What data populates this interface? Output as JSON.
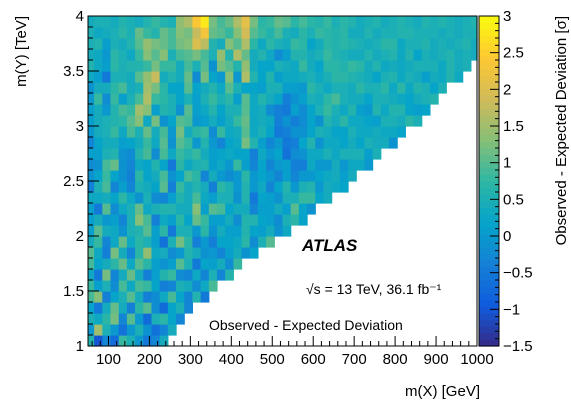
{
  "chart_data": {
    "type": "heatmap",
    "title": "",
    "xlabel": "m(X) [GeV]",
    "ylabel": "m(Y) [TeV]",
    "zlabel": "Observed - Expected Deviation [σ]",
    "xlim": [
      50,
      1000
    ],
    "ylim": [
      1,
      4
    ],
    "zlim": [
      -1.5,
      3
    ],
    "x_ticks": [
      "100",
      "200",
      "300",
      "400",
      "500",
      "600",
      "700",
      "800",
      "900",
      "1000"
    ],
    "y_ticks": [
      "1",
      "1.5",
      "2",
      "2.5",
      "3",
      "3.5",
      "4"
    ],
    "z_ticks": [
      "−1.5",
      "−1",
      "−0.5",
      "0",
      "0.5",
      "1",
      "1.5",
      "2",
      "2.5",
      "3"
    ],
    "grid": false,
    "x_centers": [
      55,
      75,
      95,
      115,
      135,
      155,
      175,
      195,
      215,
      235,
      255,
      275,
      295,
      315,
      335,
      355,
      375,
      395,
      415,
      435,
      455,
      475,
      495,
      515,
      535,
      555,
      575,
      595,
      615,
      635,
      655,
      675,
      695,
      715,
      735,
      755,
      775,
      795,
      815,
      835,
      855,
      875,
      895,
      915,
      935,
      955,
      975,
      995
    ],
    "y_centers": [
      1.05,
      1.15,
      1.25,
      1.35,
      1.45,
      1.55,
      1.65,
      1.75,
      1.85,
      1.95,
      2.05,
      2.15,
      2.25,
      2.35,
      2.45,
      2.55,
      2.65,
      2.75,
      2.85,
      2.95,
      3.05,
      3.15,
      3.25,
      3.35,
      3.45,
      3.55,
      3.65,
      3.75,
      3.85,
      3.95
    ],
    "z": [
      [
        0.6,
        -1.0,
        -0.3,
        -0.7,
        0.8,
        0.5,
        0.0,
        -0.5,
        -0.3,
        0.4
      ],
      [
        0.0,
        1.5,
        0.5,
        0.0,
        -0.6,
        0.0,
        0.5,
        -0.1,
        -0.6,
        -0.3,
        0.4
      ],
      [
        0.5,
        0.3,
        0.7,
        1.2,
        -0.3,
        1.0,
        0.0,
        -0.7,
        0.5,
        0.7,
        0.2,
        -0.3
      ],
      [
        0.2,
        -0.5,
        0.4,
        1.1,
        0.4,
        -0.4,
        0.7,
        1.0,
        -0.2,
        -0.7,
        0.2,
        0.5,
        -0.3
      ],
      [
        0.9,
        1.3,
        -0.4,
        0.2,
        0.5,
        1.0,
        0.4,
        -0.4,
        -0.2,
        0.3,
        0.9,
        0.2,
        -0.3,
        0.6,
        -0.5
      ],
      [
        0.8,
        0.1,
        0.5,
        -0.2,
        0.9,
        0.3,
        0.9,
        0.8,
        0.2,
        -0.4,
        -0.3,
        0.5,
        0.4,
        -0.2,
        0.3,
        0.9
      ],
      [
        0.3,
        -0.5,
        1.2,
        -0.3,
        0.4,
        1.1,
        0.4,
        -0.4,
        0.1,
        0.6,
        0.8,
        -0.2,
        -0.3,
        0.3,
        -0.3,
        0.5,
        -0.3,
        0.6
      ],
      [
        0.9,
        0.2,
        0.4,
        0.7,
        1.1,
        0.3,
        1.0,
        0.7,
        0.1,
        -0.1,
        0.1,
        1.0,
        0.5,
        -0.5,
        0.2,
        0.1,
        0.4,
        -0.2,
        0.8
      ],
      [
        1.0,
        0.3,
        -0.4,
        1.2,
        0.4,
        -0.3,
        0.7,
        1.4,
        0.3,
        0.4,
        -0.2,
        0.0,
        0.6,
        0.4,
        -0.1,
        0.0,
        -0.3,
        0.1,
        0.4,
        -0.1,
        0.2
      ],
      [
        0.4,
        0.8,
        -0.3,
        0.3,
        1.1,
        0.3,
        0.7,
        0.5,
        0.1,
        -0.6,
        0.5,
        1.2,
        0.7,
        -0.4,
        0.0,
        -0.4,
        0.2,
        0.2,
        0.3,
        0.7,
        -0.2,
        0.5,
        1.0
      ],
      [
        0.1,
        1.0,
        0.4,
        0.3,
        -0.1,
        0.5,
        0.6,
        1.0,
        0.1,
        0.7,
        -0.5,
        0.5,
        0.5,
        0.0,
        0.7,
        -0.1,
        0.4,
        0.1,
        0.1,
        0.6,
        0.2,
        0.1,
        0.4,
        -0.1,
        0.3
      ],
      [
        0.1,
        0.4,
        0.0,
        0.1,
        -0.3,
        0.5,
        1.3,
        0.9,
        -0.4,
        0.3,
        0.1,
        0.7,
        0.2,
        1.1,
        0.8,
        0.1,
        0.1,
        0.4,
        -0.2,
        0.6,
        0.6,
        0.2,
        0.1,
        -0.2,
        0.5,
        0.7,
        0.2
      ],
      [
        0.1,
        -0.5,
        1.0,
        -0.2,
        0.3,
        0.5,
        1.1,
        0.3,
        0.5,
        0.6,
        0.6,
        0.4,
        0.4,
        1.3,
        0.1,
        1.0,
        0.9,
        0.2,
        0.4,
        0.4,
        -0.3,
        0.1,
        0.1,
        0.4,
        0.1,
        1.0,
        0.2,
        -0.1
      ],
      [
        0.3,
        0.3,
        0.4,
        0.2,
        0.7,
        0.3,
        -0.1,
        0.5,
        -0.2,
        -0.3,
        0.1,
        0.6,
        0.4,
        0.9,
        0.3,
        0.1,
        0.5,
        0.5,
        -0.1,
        0.6,
        -0.5,
        0.2,
        0.1,
        -0.1,
        0.5,
        0.5,
        0.8,
        0.8,
        0.2,
        0.4
      ],
      [
        -0.4,
        0.5,
        0.9,
        -0.3,
        0.1,
        -0.3,
        0.5,
        0.4,
        0.2,
        1.0,
        -0.4,
        0.8,
        0.4,
        0.6,
        0.4,
        -0.4,
        0.7,
        0.5,
        0.0,
        0.6,
        0.0,
        0.3,
        -0.3,
        0.2,
        0.6,
        0.0,
        0.5,
        0.6,
        0.0,
        0.4,
        0.3,
        0.2
      ],
      [
        -0.1,
        0.2,
        0.8,
        0.2,
        -0.1,
        -0.4,
        0.7,
        0.2,
        0.4,
        0.9,
        -0.1,
        0.2,
        0.9,
        0.7,
        -0.3,
        0.4,
        0.0,
        -0.2,
        0.0,
        0.7,
        0.0,
        0.2,
        0.0,
        -0.3,
        0.1,
        -0.3,
        0.0,
        0.0,
        0.2,
        0.3,
        0.4,
        0.1,
        0.4
      ],
      [
        -0.2,
        -0.1,
        0.9,
        1.1,
        -0.1,
        -0.3,
        0.3,
        0.2,
        0.6,
        0.2,
        -0.5,
        0.7,
        0.3,
        0.5,
        0.6,
        0.1,
        0.3,
        0.0,
        0.8,
        0.1,
        -0.3,
        0.2,
        -0.3,
        0.0,
        0.1,
        -0.4,
        -0.4,
        0.3,
        0.0,
        0.0,
        0.4,
        0.0,
        0.3,
        0.3,
        0.0
      ],
      [
        0.1,
        0.1,
        0.5,
        0.6,
        -0.1,
        -0.2,
        0.6,
        0.9,
        -0.2,
        0.9,
        0.3,
        0.8,
        0.6,
        0.8,
        0.4,
        0.1,
        0.2,
        0.3,
        0.2,
        0.2,
        -0.4,
        0.3,
        0.0,
        0.2,
        -0.6,
        -0.2,
        -0.1,
        0.3,
        0.3,
        0.5,
        0.3,
        0.5,
        0.5,
        0.5,
        0.1,
        0.5
      ],
      [
        -0.3,
        0.2,
        0.4,
        0.4,
        0.1,
        0.2,
        0.4,
        0.8,
        0.3,
        1.0,
        -0.1,
        1.0,
        0.8,
        0.0,
        0.6,
        0.0,
        -0.3,
        0.2,
        0.3,
        1.2,
        0.6,
        0.1,
        -0.3,
        0.0,
        -0.5,
        -0.4,
        0.2,
        0.6,
        -0.1,
        0.3,
        0.3,
        0.2,
        0.4,
        0.2,
        0.5,
        0.4,
        0.4,
        -0.1
      ],
      [
        0.0,
        0.4,
        0.5,
        0.8,
        0.3,
        0.9,
        0.5,
        1.1,
        0.4,
        0.9,
        0.0,
        1.2,
        0.4,
        0.7,
        0.8,
        -0.2,
        0.8,
        0.3,
        0.4,
        1.0,
        0.3,
        0.5,
        0.2,
        -0.5,
        -0.4,
        -0.1,
        -0.1,
        0.2,
        0.5,
        0.4,
        0.2,
        0.2,
        0.5,
        0.3,
        0.3,
        0.4,
        0.3,
        0.3,
        0.2
      ],
      [
        0.1,
        0.4,
        0.5,
        0.6,
        0.7,
        1.0,
        1.3,
        0.3,
        1.2,
        -0.1,
        0.2,
        1.0,
        0.9,
        0.0,
        0.1,
        0.4,
        0.1,
        0.4,
        0.8,
        1.1,
        0.3,
        0.4,
        0.3,
        -0.4,
        -0.1,
        -0.4,
        -0.2,
        0.2,
        -0.1,
        0.6,
        0.4,
        0.7,
        0.3,
        0.3,
        0.2,
        0.1,
        0.5,
        0.5,
        0.4,
        0.7,
        0.5
      ],
      [
        0.1,
        0.4,
        0.0,
        0.6,
        0.9,
        0.8,
        1.5,
        1.3,
        0.1,
        0.6,
        0.5,
        -0.1,
        1.0,
        0.1,
        0.3,
        0.6,
        0.2,
        0.5,
        0.5,
        1.0,
        0.3,
        0.4,
        -0.2,
        -0.4,
        -0.5,
        0.1,
        -0.2,
        0.2,
        0.5,
        0.8,
        0.5,
        0.3,
        0.6,
        0.1,
        0.0,
        0.6,
        0.3,
        0.6,
        0.6,
        0.2,
        0.1,
        0.2
      ],
      [
        0.0,
        0.8,
        -0.2,
        0.8,
        0.1,
        0.5,
        0.9,
        1.6,
        0.8,
        0.7,
        0.5,
        0.2,
        0.5,
        0.1,
        0.5,
        0.8,
        0.5,
        0.7,
        0.1,
        1.0,
        0.3,
        0.6,
        0.4,
        0.2,
        -0.4,
        -0.1,
        0.1,
        0.5,
        0.4,
        0.7,
        0.9,
        0.5,
        0.4,
        0.4,
        0.2,
        0.5,
        0.5,
        0.4,
        0.3,
        0.2,
        0.4,
        0.5,
        0.6
      ],
      [
        -0.1,
        0.4,
        0.4,
        0.7,
        0.9,
        0.4,
        0.5,
        1.5,
        1.2,
        0.7,
        0.2,
        0.2,
        1.0,
        0.2,
        0.4,
        0.6,
        0.3,
        1.0,
        0.5,
        0.2,
        0.2,
        0.1,
        0.5,
        0.5,
        0.1,
        0.1,
        0.0,
        0.7,
        0.5,
        0.3,
        0.5,
        0.5,
        0.4,
        0.7,
        0.5,
        0.5,
        0.7,
        0.3,
        0.7,
        0.3,
        0.6,
        0.5,
        0.2,
        0.5
      ],
      [
        0.3,
        0.1,
        -0.5,
        0.5,
        0.5,
        0.4,
        1.0,
        1.4,
        1.8,
        0.4,
        0.6,
        0.4,
        1.1,
        -0.2,
        1.2,
        0.2,
        0.0,
        1.3,
        0.0,
        1.6,
        0.6,
        0.2,
        0.6,
        0.1,
        0.3,
        0.3,
        0.4,
        0.5,
        0.3,
        0.5,
        0.7,
        0.7,
        0.6,
        0.5,
        0.4,
        0.2,
        0.5,
        0.6,
        0.3,
        0.5,
        0.4,
        0.1,
        0.4,
        0.3,
        0.6,
        0.3
      ],
      [
        0.6,
        0.3,
        0.1,
        0.7,
        0.5,
        0.6,
        0.6,
        0.8,
        1.2,
        0.8,
        0.8,
        0.4,
        0.9,
        0.5,
        1.0,
        -0.1,
        1.2,
        1.0,
        0.6,
        1.4,
        0.4,
        0.2,
        0.2,
        0.5,
        0.4,
        0.3,
        0.8,
        0.4,
        0.2,
        0.7,
        0.7,
        0.6,
        0.8,
        0.7,
        0.4,
        0.6,
        0.3,
        0.4,
        0.3,
        0.4,
        0.5,
        0.5,
        0.5,
        0.3,
        0.6,
        0.4,
        0.5
      ],
      [
        0.4,
        0.3,
        0.0,
        0.7,
        0.5,
        0.3,
        0.8,
        1.3,
        1.0,
        1.3,
        0.5,
        0.9,
        1.0,
        1.2,
        0.9,
        0.5,
        1.4,
        0.6,
        1.6,
        1.1,
        0.4,
        0.6,
        0.3,
        -0.2,
        0.1,
        0.6,
        0.6,
        0.4,
        0.5,
        0.8,
        0.6,
        0.5,
        0.4,
        0.4,
        0.6,
        0.4,
        0.5,
        0.6,
        0.3,
        0.6,
        0.2,
        0.5,
        0.4,
        0.5,
        0.6,
        0.4,
        0.5,
        0.4
      ],
      [
        0.5,
        0.6,
        0.1,
        0.5,
        0.4,
        0.6,
        1.0,
        1.4,
        1.2,
        1.1,
        0.9,
        1.2,
        1.3,
        2.0,
        1.7,
        0.6,
        0.4,
        1.3,
        1.0,
        1.6,
        0.7,
        0.3,
        0.7,
        0.5,
        0.4,
        0.8,
        0.7,
        0.2,
        0.4,
        0.7,
        0.6,
        0.7,
        0.6,
        0.5,
        0.4,
        0.5,
        0.7,
        0.7,
        0.3,
        0.5,
        0.5,
        0.6,
        0.4,
        0.5,
        0.4,
        0.5,
        0.6,
        0.4
      ],
      [
        0.5,
        0.3,
        0.4,
        0.5,
        0.7,
        0.5,
        1.1,
        0.8,
        0.6,
        1.1,
        0.9,
        1.3,
        1.2,
        1.8,
        2.3,
        1.1,
        1.0,
        0.8,
        1.3,
        1.9,
        1.0,
        0.8,
        0.6,
        0.9,
        0.5,
        0.4,
        0.7,
        0.5,
        0.8,
        0.7,
        0.6,
        0.7,
        0.4,
        0.4,
        0.6,
        0.4,
        0.5,
        0.5,
        0.6,
        0.6,
        0.5,
        0.5,
        0.5,
        0.4,
        0.5,
        0.4,
        0.5,
        0.5
      ],
      [
        0.4,
        0.5,
        0.5,
        0.4,
        0.6,
        0.5,
        0.4,
        0.6,
        0.8,
        0.6,
        0.5,
        1.4,
        1.6,
        2.4,
        2.8,
        1.2,
        0.9,
        1.1,
        1.6,
        2.1,
        1.2,
        0.7,
        0.8,
        1.1,
        1.0,
        0.7,
        0.9,
        0.7,
        0.6,
        0.8,
        0.5,
        0.7,
        0.6,
        0.4,
        0.5,
        0.6,
        0.4,
        0.5,
        0.6,
        0.5,
        0.4,
        0.6,
        0.5,
        0.6,
        0.5,
        0.4,
        0.5,
        0.6
      ]
    ],
    "annotations": [
      "ATLAS",
      "√s = 13 TeV, 36.1 fb⁻¹",
      "Observed - Expected Deviation"
    ]
  },
  "colors": {
    "palette": [
      "#352a87",
      "#0f5cdd",
      "#1481d6",
      "#06a4ca",
      "#2eb7a4",
      "#87bf77",
      "#d1bb59",
      "#fec832",
      "#f9fb0e"
    ],
    "frame": "#000000",
    "background": "#ffffff"
  }
}
